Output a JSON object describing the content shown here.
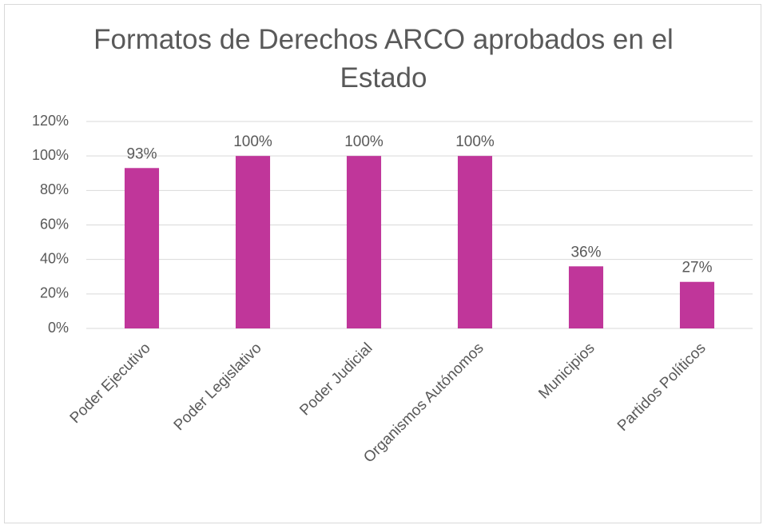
{
  "chart_data": {
    "type": "bar",
    "title": "Formatos de Derechos ARCO aprobados en el Estado",
    "categories": [
      "Poder Ejecutivo",
      "Poder Legislativo",
      "Poder Judicial",
      "Organismos Autónomos",
      "Municipios",
      "Partidos Políticos"
    ],
    "values": [
      93,
      100,
      100,
      100,
      36,
      27
    ],
    "value_labels": [
      "93%",
      "100%",
      "100%",
      "100%",
      "36%",
      "27%"
    ],
    "color": "#c0369a",
    "ylim": [
      0,
      120
    ],
    "yticks": [
      {
        "value": 0,
        "label": "0%"
      },
      {
        "value": 20,
        "label": "20%"
      },
      {
        "value": 40,
        "label": "40%"
      },
      {
        "value": 60,
        "label": "60%"
      },
      {
        "value": 80,
        "label": "80%"
      },
      {
        "value": 100,
        "label": "100%"
      },
      {
        "value": 120,
        "label": "120%"
      }
    ],
    "grid": true
  }
}
